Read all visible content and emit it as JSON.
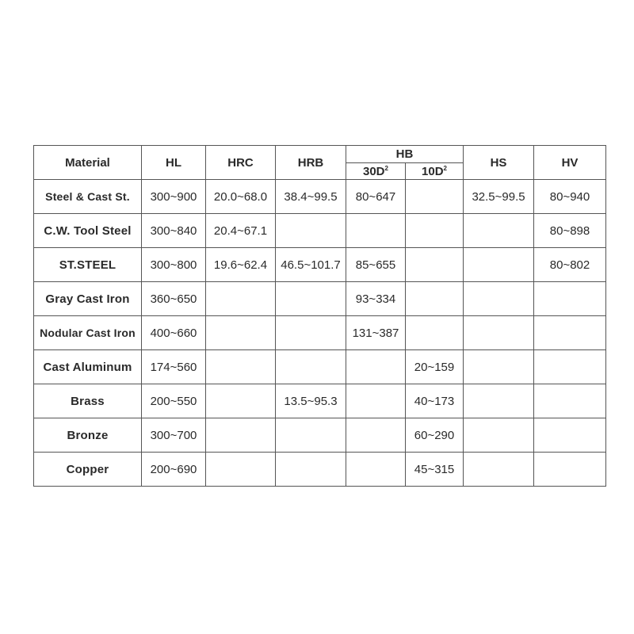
{
  "headers": {
    "material": "Material",
    "hl": "HL",
    "hrc": "HRC",
    "hrb": "HRB",
    "hb": "HB",
    "hb_30": "30D",
    "hb_10": "10D",
    "superscript": "2",
    "hs": "HS",
    "hv": "HV"
  },
  "rows": [
    {
      "material": "Steel & Cast St.",
      "hl": "300~900",
      "hrc": "20.0~68.0",
      "hrb": "38.4~99.5",
      "hb30": "80~647",
      "hb10": "",
      "hs": "32.5~99.5",
      "hv": "80~940"
    },
    {
      "material": "C.W. Tool Steel",
      "hl": "300~840",
      "hrc": "20.4~67.1",
      "hrb": "",
      "hb30": "",
      "hb10": "",
      "hs": "",
      "hv": "80~898"
    },
    {
      "material": "ST.STEEL",
      "hl": "300~800",
      "hrc": "19.6~62.4",
      "hrb": "46.5~101.7",
      "hb30": "85~655",
      "hb10": "",
      "hs": "",
      "hv": "80~802"
    },
    {
      "material": "Gray Cast Iron",
      "hl": "360~650",
      "hrc": "",
      "hrb": "",
      "hb30": "93~334",
      "hb10": "",
      "hs": "",
      "hv": ""
    },
    {
      "material": "Nodular Cast Iron",
      "hl": "400~660",
      "hrc": "",
      "hrb": "",
      "hb30": "131~387",
      "hb10": "",
      "hs": "",
      "hv": ""
    },
    {
      "material": "Cast Aluminum",
      "hl": "174~560",
      "hrc": "",
      "hrb": "",
      "hb30": "",
      "hb10": "20~159",
      "hs": "",
      "hv": ""
    },
    {
      "material": "Brass",
      "hl": "200~550",
      "hrc": "",
      "hrb": "13.5~95.3",
      "hb30": "",
      "hb10": "40~173",
      "hs": "",
      "hv": ""
    },
    {
      "material": "Bronze",
      "hl": "300~700",
      "hrc": "",
      "hrb": "",
      "hb30": "",
      "hb10": "60~290",
      "hs": "",
      "hv": ""
    },
    {
      "material": "Copper",
      "hl": "200~690",
      "hrc": "",
      "hrb": "",
      "hb30": "",
      "hb10": "45~315",
      "hs": "",
      "hv": ""
    }
  ]
}
